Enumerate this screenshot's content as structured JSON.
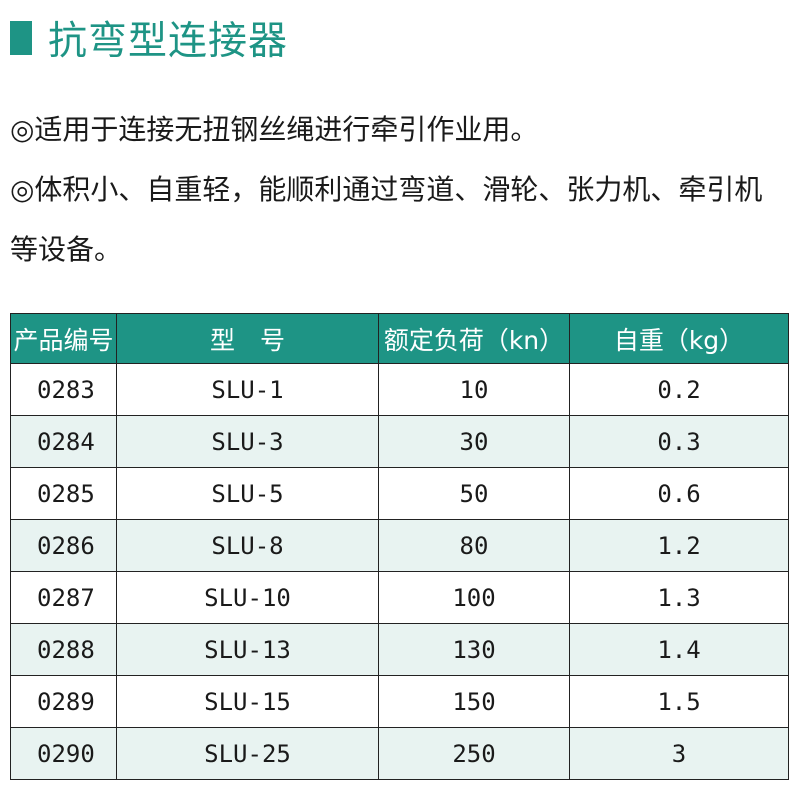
{
  "title": "抗弯型连接器",
  "description": [
    "◎适用于连接无扭钢丝绳进行牵引作业用。",
    "◎体积小、自重轻，能顺利通过弯道、滑轮、张力机、牵引机等设备。"
  ],
  "table": {
    "headers": [
      "产品编号",
      "型　号",
      "额定负荷（kn）",
      "自重（kg）"
    ],
    "rows": [
      [
        "0283",
        "SLU-1",
        "10",
        "0.2"
      ],
      [
        "0284",
        "SLU-3",
        "30",
        "0.3"
      ],
      [
        "0285",
        "SLU-5",
        "50",
        "0.6"
      ],
      [
        "0286",
        "SLU-8",
        "80",
        "1.2"
      ],
      [
        "0287",
        "SLU-10",
        "100",
        "1.3"
      ],
      [
        "0288",
        "SLU-13",
        "130",
        "1.4"
      ],
      [
        "0289",
        "SLU-15",
        "150",
        "1.5"
      ],
      [
        "0290",
        "SLU-25",
        "250",
        "3"
      ]
    ]
  },
  "colors": {
    "accent": "#1e9485",
    "row_alt": "#e8f3f1"
  }
}
